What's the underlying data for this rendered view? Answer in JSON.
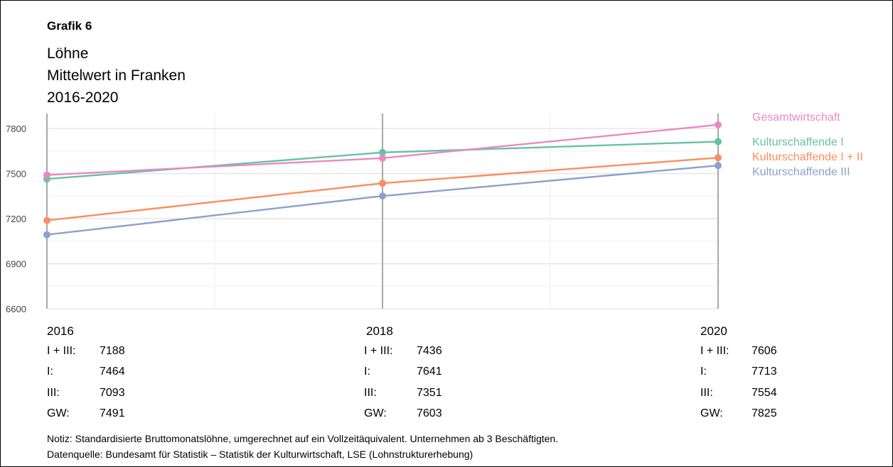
{
  "figure": {
    "label": "Grafik 6",
    "title_lines": [
      "Löhne",
      "Mittelwert in Franken",
      "2016-2020"
    ]
  },
  "chart_data": {
    "type": "line",
    "categories": [
      "2016",
      "2018",
      "2020"
    ],
    "x": [
      2016,
      2018,
      2020
    ],
    "ylim": [
      6600,
      7900
    ],
    "yticks": [
      "6600",
      "6900",
      "7200",
      "7500",
      "7800"
    ],
    "grid": true,
    "legend_position": "right",
    "series": [
      {
        "name": "Gesamtwirtschaft",
        "color": "#e78ac3",
        "values": [
          7491,
          7603,
          7825
        ]
      },
      {
        "name": "Kulturschaffende I",
        "color": "#66c2a5",
        "values": [
          7464,
          7641,
          7713
        ]
      },
      {
        "name": "Kulturschaffende I + II",
        "color": "#fc8d62",
        "values": [
          7188,
          7436,
          7606
        ]
      },
      {
        "name": "Kulturschaffende III",
        "color": "#8da0cb",
        "values": [
          7093,
          7351,
          7554
        ]
      }
    ]
  },
  "stats": [
    {
      "year": "2016",
      "rows": [
        {
          "label": "I + III:",
          "value": "7188"
        },
        {
          "label": "I:",
          "value": "7464"
        },
        {
          "label": "III:",
          "value": "7093"
        },
        {
          "label": "GW:",
          "value": "7491"
        }
      ]
    },
    {
      "year": "2018",
      "rows": [
        {
          "label": "I + III:",
          "value": "7436"
        },
        {
          "label": "I:",
          "value": "7641"
        },
        {
          "label": "III:",
          "value": "7351"
        },
        {
          "label": "GW:",
          "value": "7603"
        }
      ]
    },
    {
      "year": "2020",
      "rows": [
        {
          "label": "I + III:",
          "value": "7606"
        },
        {
          "label": "I:",
          "value": "7713"
        },
        {
          "label": "III:",
          "value": "7554"
        },
        {
          "label": "GW:",
          "value": "7825"
        }
      ]
    }
  ],
  "notes": {
    "notiz": "Notiz: Standardisierte Bruttomonatslöhne, umgerechnet auf ein Vollzeitäquivalent. Unternehmen ab 3 Beschäftigten.",
    "quelle": "Datenquelle: Bundesamt für Statistik – Statistik der Kulturwirtschaft, LSE (Lohnstrukturerhebung)"
  }
}
